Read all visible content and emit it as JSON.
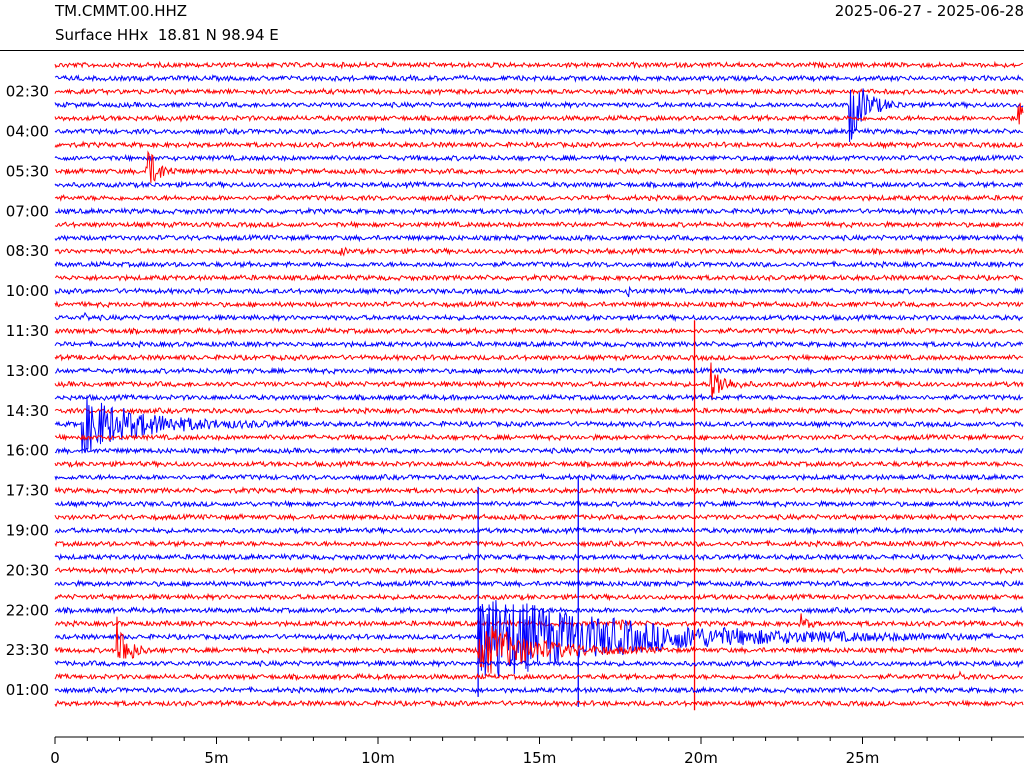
{
  "header": {
    "station": "TM.CMMT.00.HHZ",
    "location": "Surface HHx  18.81 N 98.94 E",
    "date_range": "2025-06-27 - 2025-06-28"
  },
  "chart_data": {
    "type": "line",
    "title": "TM.CMMT.00.HHZ",
    "subtitle": "Surface HHx  18.81 N 98.94 E",
    "date_range": "2025-06-27 - 2025-06-28",
    "x_unit": "minutes",
    "xlim": [
      0,
      30
    ],
    "x_ticks": [
      0,
      5,
      10,
      15,
      20,
      25
    ],
    "x_tick_labels": [
      "0",
      "5m",
      "10m",
      "15m",
      "20m",
      "25m"
    ],
    "x_minor_tick_step": 1,
    "row_count": 49,
    "row_interval_minutes": 30,
    "first_row_time": "01:30",
    "colors": {
      "odd": "#ff0000",
      "even": "#0000ff"
    },
    "y_tick_labels": [
      "02:30",
      "04:00",
      "05:30",
      "07:00",
      "08:30",
      "10:00",
      "11:30",
      "13:00",
      "14:30",
      "16:00",
      "17:30",
      "19:00",
      "20:30",
      "22:00",
      "23:30",
      "01:00"
    ],
    "y_tick_row_index": [
      2,
      5,
      8,
      11,
      14,
      17,
      20,
      23,
      26,
      29,
      32,
      35,
      38,
      41,
      44,
      47
    ],
    "events": [
      {
        "row": 3,
        "t": 24.6,
        "amp": 38,
        "dur": 1.8
      },
      {
        "row": 4,
        "t": 29.8,
        "amp": 22,
        "dur": 0.6
      },
      {
        "row": 8,
        "t": 2.8,
        "amp": 30,
        "dur": 1.2
      },
      {
        "row": 14,
        "t": 8.8,
        "amp": 6,
        "dur": 0.5
      },
      {
        "row": 17,
        "t": 17.7,
        "amp": 8,
        "dur": 0.4
      },
      {
        "row": 19,
        "t": 0.9,
        "amp": 7,
        "dur": 0.3
      },
      {
        "row": 24,
        "t": 20.3,
        "amp": 22,
        "dur": 1.4
      },
      {
        "row": 27,
        "t": 0.8,
        "amp": 30,
        "dur": 7.0
      },
      {
        "row": 44,
        "t": 1.9,
        "amp": 36,
        "dur": 1.2
      },
      {
        "row": 43,
        "t": 13.1,
        "amp": 48,
        "dur": 16.0
      },
      {
        "row": 44,
        "t": 13.1,
        "amp": 30,
        "dur": 6.0
      },
      {
        "row": 42,
        "t": 17.5,
        "amp": 6,
        "dur": 0.5
      },
      {
        "row": 42,
        "t": 23.1,
        "amp": 8,
        "dur": 0.8
      },
      {
        "row": 46,
        "t": 28.0,
        "amp": 5,
        "dur": 0.4
      }
    ],
    "spikes": [
      {
        "row": 44,
        "t": 19.8,
        "up": 330,
        "down": 60
      },
      {
        "row": 43,
        "t": 16.2,
        "up": 160,
        "down": 70
      },
      {
        "row": 43,
        "t": 13.1,
        "up": 150,
        "down": 60
      }
    ]
  }
}
